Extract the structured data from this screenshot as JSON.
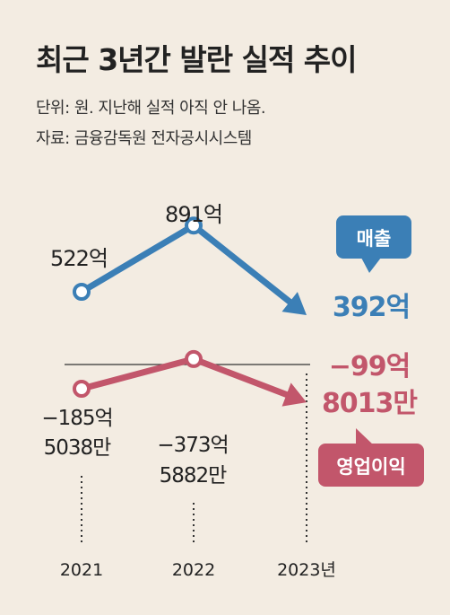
{
  "title": "최근 3년간 발란 실적 추이",
  "unit_note": "단위: 원. 지난해 실적 아직 안 나옴.",
  "source": "자료: 금융감독원 전자공시시스템",
  "colors": {
    "revenue": "#3b7fb6",
    "operating_profit": "#c2566b",
    "background": "#f3ece2"
  },
  "chart_data": {
    "type": "line",
    "x": [
      "2021",
      "2022",
      "2023년"
    ],
    "series": [
      {
        "name": "매출",
        "values": [
          52200000000,
          89100000000,
          39200000000
        ],
        "labels": [
          "522억",
          "891억",
          "392억"
        ]
      },
      {
        "name": "영업이익",
        "values": [
          -18550380000,
          -37358820000,
          -9980130000
        ],
        "labels": [
          [
            "−185억",
            "5038만"
          ],
          [
            "−373억",
            "5882만"
          ],
          [
            "−99억",
            "8013만"
          ]
        ]
      }
    ],
    "last_point": "arrow",
    "zero_line": true
  }
}
